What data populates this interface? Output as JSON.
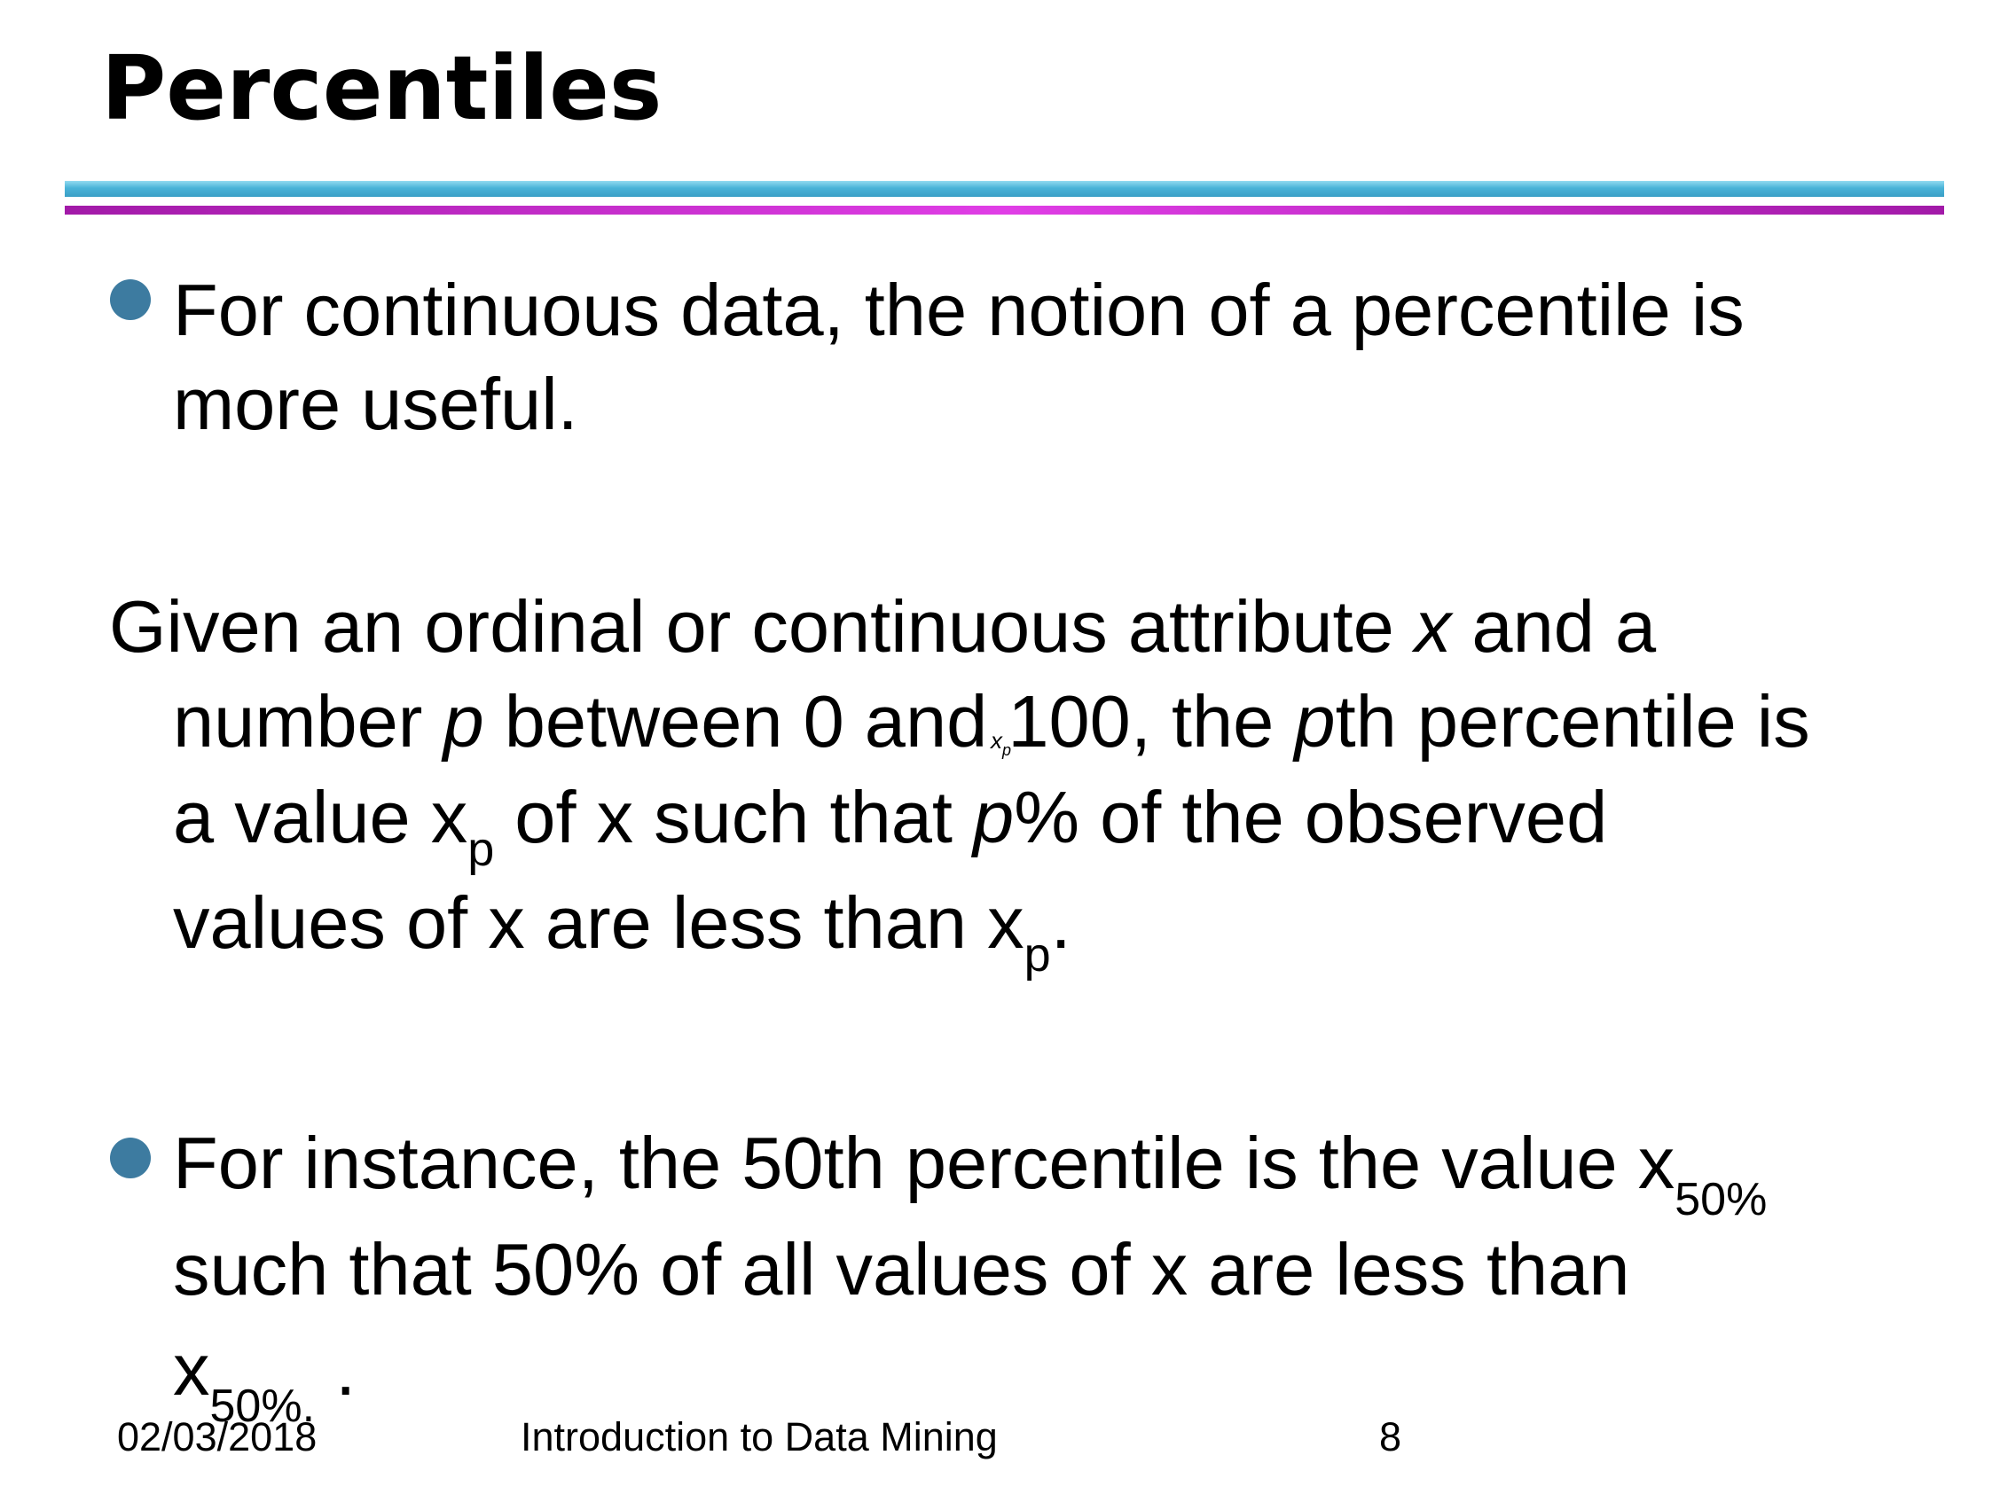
{
  "slide": {
    "title": "Percentiles"
  },
  "bullet1": {
    "line1": "For continuous data, the notion of a percentile is",
    "line2": "more useful."
  },
  "definition": {
    "line1_a": "Given an ordinal or continuous attribute ",
    "var_x": "x",
    "line1_b": " and a",
    "line2_a": "number ",
    "var_p": "p",
    "line2_b": " between 0 and 100, the ",
    "line2_c": "th percentile is",
    "line3_a": "a value x",
    "sub_p": "p",
    "line3_b": " of x such that ",
    "line3_c": "% of the observed",
    "line4_a": "values of x are less than x",
    "line4_b": ".",
    "ghost_x": "x",
    "ghost_p": "p"
  },
  "bullet2": {
    "line1": "For instance, the 50th percentile is the value x",
    "sub_50": "50%",
    "line2": "such that 50% of all values of x are less than",
    "line3_a": "x",
    "line3_sub": "50%.",
    "line3_b": "  ."
  },
  "footer": {
    "date": "02/03/2018",
    "course": "Introduction to Data Mining",
    "page": "8"
  },
  "colors": {
    "bullet": "#3d7ba0",
    "rule_cyan": "#4ab3d8",
    "rule_magenta": "#d23bd8"
  }
}
